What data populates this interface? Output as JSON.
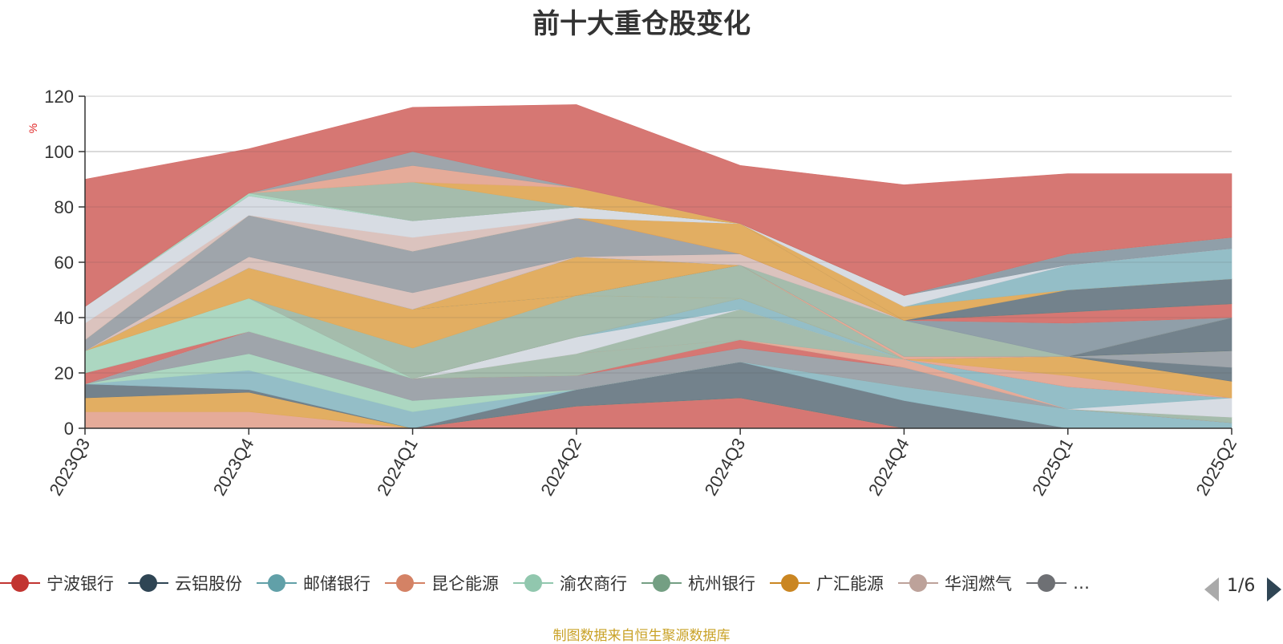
{
  "chart_data": {
    "type": "area",
    "title": "前十大重仓股变化",
    "ylabel": "%",
    "xlabel": "",
    "ylim": [
      0,
      120
    ],
    "yticks": [
      0,
      20,
      40,
      60,
      80,
      100,
      120
    ],
    "categories": [
      "2023Q3",
      "2023Q4",
      "2024Q1",
      "2024Q2",
      "2024Q3",
      "2024Q4",
      "2025Q1",
      "2025Q2"
    ],
    "stacked_to_100": true,
    "layers": [
      {
        "color": "#d4706c",
        "values": [
          0,
          0,
          0,
          8,
          11,
          0,
          0,
          0
        ]
      },
      {
        "color": "#e4a694",
        "values": [
          6,
          6,
          0,
          0,
          0,
          0,
          0,
          0
        ]
      },
      {
        "color": "#e0aa5a",
        "values": [
          5,
          7,
          0,
          0,
          0,
          0,
          0,
          0
        ]
      },
      {
        "color": "#6b7b86",
        "values": [
          5,
          1,
          0,
          6,
          13,
          10,
          0,
          0
        ]
      },
      {
        "color": "#8ebac4",
        "values": [
          0,
          7,
          6,
          0,
          0,
          5,
          7,
          2
        ]
      },
      {
        "color": "#a8d5be",
        "values": [
          0,
          6,
          4,
          0,
          0,
          0,
          0,
          0
        ]
      },
      {
        "color": "#9aa0a6",
        "values": [
          0,
          8,
          8,
          5,
          5,
          7,
          0,
          0
        ]
      },
      {
        "color": "#d4706c",
        "values": [
          0,
          0,
          0,
          0,
          3,
          0,
          0,
          0
        ]
      },
      {
        "color": "#a0b8a8",
        "values": [
          0,
          0,
          0,
          8,
          0,
          0,
          0,
          2
        ]
      },
      {
        "color": "#e4a694",
        "values": [
          0,
          0,
          0,
          0,
          0,
          3,
          0,
          0
        ]
      },
      {
        "color": "#a0b8a8",
        "values": [
          0,
          0,
          0,
          0,
          11,
          0,
          0,
          0
        ]
      },
      {
        "color": "#d5dae2",
        "values": [
          0,
          0,
          0,
          6,
          0,
          0,
          0,
          7
        ]
      },
      {
        "color": "#8ebac4",
        "values": [
          0,
          0,
          0,
          0,
          4,
          0,
          8,
          0
        ]
      },
      {
        "color": "#d4706c",
        "values": [
          4,
          0,
          0,
          0,
          0,
          0,
          0,
          0
        ]
      },
      {
        "color": "#e4a694",
        "values": [
          0,
          0,
          0,
          0,
          0,
          0,
          4,
          0
        ]
      },
      {
        "color": "#e0aa5a",
        "values": [
          0,
          0,
          0,
          0,
          0,
          0,
          7,
          6
        ]
      },
      {
        "color": "#6b7b86",
        "values": [
          0,
          0,
          0,
          0,
          0,
          0,
          0,
          5
        ]
      },
      {
        "color": "#9aa0a6",
        "values": [
          0,
          0,
          0,
          0,
          0,
          0,
          0,
          6
        ]
      },
      {
        "color": "#a8d5be",
        "values": [
          8,
          12,
          0,
          0,
          0,
          0,
          0,
          0
        ]
      },
      {
        "color": "#a0b8a8",
        "values": [
          0,
          0,
          11,
          15,
          0,
          0,
          0,
          0
        ]
      },
      {
        "color": "#e0aa5a",
        "values": [
          0,
          11,
          14,
          0,
          0,
          0,
          0,
          0
        ]
      },
      {
        "color": "#a0b8a8",
        "values": [
          0,
          0,
          0,
          0,
          12,
          0,
          0,
          0
        ]
      },
      {
        "color": "#6b7b86",
        "values": [
          0,
          0,
          0,
          0,
          0,
          0,
          0,
          12
        ]
      },
      {
        "color": "#e0aa5a",
        "values": [
          0,
          0,
          0,
          14,
          0,
          0,
          0,
          0
        ]
      },
      {
        "color": "#e4a694",
        "values": [
          0,
          0,
          0,
          0,
          0,
          1,
          0,
          0
        ]
      },
      {
        "color": "#6b7b86",
        "values": [
          0,
          0,
          0,
          0,
          0,
          0,
          0,
          0
        ]
      },
      {
        "color": "#a0b8a8",
        "values": [
          0,
          0,
          0,
          0,
          0,
          13,
          0,
          0
        ]
      },
      {
        "color": "#8a9aa4",
        "values": [
          0,
          0,
          0,
          0,
          0,
          0,
          12,
          0
        ]
      },
      {
        "color": "#d9c0bb",
        "values": [
          0,
          4,
          6,
          0,
          4,
          0,
          0,
          0
        ]
      },
      {
        "color": "#9aa0a6",
        "values": [
          4,
          15,
          15,
          14,
          0,
          0,
          0,
          0
        ]
      },
      {
        "color": "#d4706c",
        "values": [
          0,
          0,
          0,
          0,
          0,
          0,
          4,
          5
        ]
      },
      {
        "color": "#e0aa5a",
        "values": [
          0,
          0,
          0,
          0,
          11,
          0,
          0,
          0
        ]
      },
      {
        "color": "#6b7b86",
        "values": [
          0,
          0,
          0,
          0,
          0,
          0,
          8,
          9
        ]
      },
      {
        "color": "#e0aa5a",
        "values": [
          0,
          0,
          0,
          0,
          0,
          5,
          0,
          0
        ]
      },
      {
        "color": "#8ebac4",
        "values": [
          0,
          0,
          0,
          0,
          0,
          0,
          9,
          11
        ]
      },
      {
        "color": "#d9c0bb",
        "values": [
          6,
          0,
          5,
          0,
          0,
          0,
          0,
          0
        ]
      },
      {
        "color": "#d5dae2",
        "values": [
          6,
          7,
          6,
          4,
          0,
          4,
          0,
          0
        ]
      },
      {
        "color": "#8a9aa4",
        "values": [
          0,
          0,
          0,
          0,
          0,
          0,
          4,
          4
        ]
      },
      {
        "color": "#a8d5be",
        "values": [
          0,
          1,
          0,
          0,
          0,
          0,
          0,
          0
        ]
      },
      {
        "color": "#a0b8a8",
        "values": [
          0,
          0,
          14,
          0,
          0,
          0,
          0,
          0
        ]
      },
      {
        "color": "#e0aa5a",
        "values": [
          0,
          0,
          0,
          7,
          0,
          0,
          0,
          0
        ]
      },
      {
        "color": "#e4a694",
        "values": [
          0,
          0,
          6,
          0,
          0,
          0,
          0,
          0
        ]
      },
      {
        "color": "#9aa0a6",
        "values": [
          0,
          0,
          5,
          0,
          0,
          0,
          0,
          0
        ]
      },
      {
        "color": "#d4706c",
        "values": [
          46,
          16,
          16,
          30,
          21,
          40,
          29,
          23
        ]
      }
    ],
    "legend": [
      {
        "name": "宁波银行",
        "color": "#c23531"
      },
      {
        "name": "云铝股份",
        "color": "#2f4554"
      },
      {
        "name": "邮储银行",
        "color": "#61a0a8"
      },
      {
        "name": "昆仑能源",
        "color": "#d48265"
      },
      {
        "name": "渝农商行",
        "color": "#91c7ae"
      },
      {
        "name": "杭州银行",
        "color": "#749f83"
      },
      {
        "name": "广汇能源",
        "color": "#ca8622"
      },
      {
        "name": "华润燃气",
        "color": "#bda29a"
      },
      {
        "name": "…",
        "color": "#6e7074"
      }
    ],
    "legend_placement": "bottom",
    "grid": true
  },
  "legend_pager": {
    "text": "1/6"
  },
  "source_note": "制图数据来自恒生聚源数据库"
}
